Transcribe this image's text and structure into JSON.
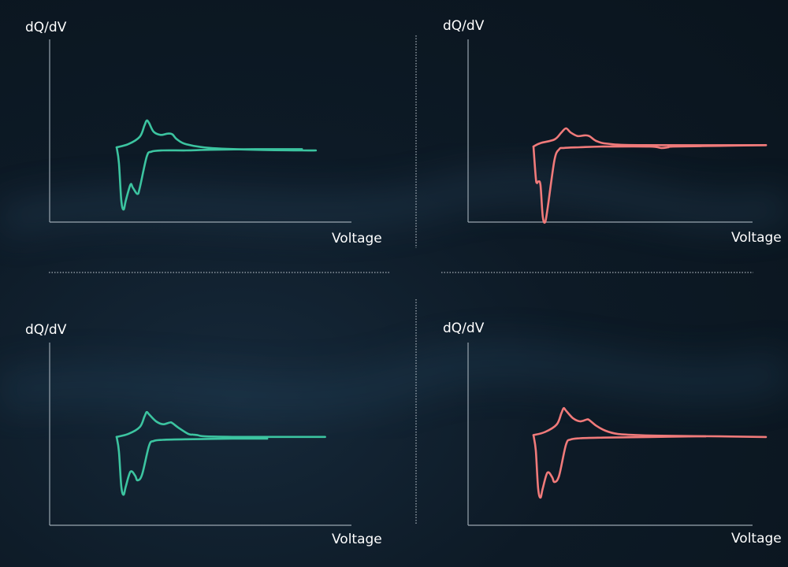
{
  "colors": {
    "background": "#0d1a26",
    "teal": "#3cc4a0",
    "coral": "#f07a7a",
    "axis": "#9aa6b0"
  },
  "chart_data": [
    {
      "type": "line",
      "ylabel": "dQ/dV",
      "xlabel": "Voltage",
      "color": "#3cc4a0",
      "xlim": [
        0,
        100
      ],
      "ylim": [
        -100,
        100
      ],
      "series": [
        {
          "values": [
            [
              0,
              5
            ],
            [
              1,
              -20
            ],
            [
              2,
              -80
            ],
            [
              3,
              -95
            ],
            [
              4,
              -80
            ],
            [
              6,
              -55
            ],
            [
              7,
              -60
            ],
            [
              9,
              -70
            ],
            [
              10,
              -60
            ],
            [
              13,
              -10
            ],
            [
              15,
              -2
            ],
            [
              20,
              0
            ],
            [
              30,
              0
            ],
            [
              40,
              1
            ],
            [
              60,
              2
            ],
            [
              75,
              2
            ],
            [
              80,
              2
            ]
          ]
        },
        {
          "values": [
            [
              0,
              5
            ],
            [
              5,
              10
            ],
            [
              10,
              22
            ],
            [
              12,
              40
            ],
            [
              13,
              48
            ],
            [
              14,
              44
            ],
            [
              16,
              30
            ],
            [
              19,
              25
            ],
            [
              22,
              27
            ],
            [
              24,
              26
            ],
            [
              26,
              18
            ],
            [
              30,
              10
            ],
            [
              40,
              4
            ],
            [
              60,
              1
            ],
            [
              80,
              0
            ],
            [
              86,
              0
            ]
          ]
        }
      ]
    },
    {
      "type": "line",
      "ylabel": "dQ/dV",
      "xlabel": "Voltage",
      "color": "#f07a7a",
      "xlim": [
        0,
        100
      ],
      "ylim": [
        -100,
        100
      ],
      "series": [
        {
          "values": [
            [
              0,
              10
            ],
            [
              1,
              -35
            ],
            [
              1.5,
              -42
            ],
            [
              2,
              -40
            ],
            [
              3,
              -45
            ],
            [
              4,
              -90
            ],
            [
              5,
              -98
            ],
            [
              6,
              -80
            ],
            [
              9,
              -10
            ],
            [
              11,
              6
            ],
            [
              13,
              8
            ],
            [
              20,
              9
            ],
            [
              30,
              10
            ],
            [
              50,
              10
            ],
            [
              55,
              8
            ],
            [
              58,
              9
            ],
            [
              60,
              10
            ],
            [
              80,
              11
            ],
            [
              100,
              12
            ]
          ]
        },
        {
          "values": [
            [
              0,
              10
            ],
            [
              3,
              15
            ],
            [
              9,
              20
            ],
            [
              12,
              30
            ],
            [
              14,
              36
            ],
            [
              16,
              30
            ],
            [
              19,
              25
            ],
            [
              22,
              26
            ],
            [
              24,
              25
            ],
            [
              27,
              18
            ],
            [
              32,
              14
            ],
            [
              45,
              12
            ],
            [
              100,
              12
            ]
          ]
        }
      ]
    },
    {
      "type": "line",
      "ylabel": "dQ/dV",
      "xlabel": "Voltage",
      "color": "#3cc4a0",
      "xlim": [
        0,
        100
      ],
      "ylim": [
        -100,
        100
      ],
      "series": [
        {
          "values": [
            [
              0,
              5
            ],
            [
              1,
              -20
            ],
            [
              2,
              -80
            ],
            [
              3,
              -95
            ],
            [
              4,
              -80
            ],
            [
              6,
              -55
            ],
            [
              8,
              -62
            ],
            [
              9,
              -70
            ],
            [
              11,
              -60
            ],
            [
              14,
              -10
            ],
            [
              16,
              -2
            ],
            [
              20,
              0
            ],
            [
              30,
              1
            ],
            [
              50,
              2
            ],
            [
              65,
              2
            ]
          ]
        },
        {
          "values": [
            [
              0,
              5
            ],
            [
              5,
              10
            ],
            [
              10,
              22
            ],
            [
              12,
              40
            ],
            [
              13,
              48
            ],
            [
              14,
              44
            ],
            [
              17,
              32
            ],
            [
              20,
              27
            ],
            [
              23,
              30
            ],
            [
              24,
              29
            ],
            [
              27,
              20
            ],
            [
              31,
              10
            ],
            [
              33,
              9
            ],
            [
              35,
              8
            ],
            [
              38,
              6
            ],
            [
              50,
              5
            ],
            [
              60,
              5
            ],
            [
              80,
              5
            ],
            [
              90,
              5
            ]
          ]
        }
      ]
    },
    {
      "type": "line",
      "ylabel": "dQ/dV",
      "xlabel": "Voltage",
      "color": "#f07a7a",
      "xlim": [
        0,
        100
      ],
      "ylim": [
        -100,
        100
      ],
      "series": [
        {
          "values": [
            [
              0,
              5
            ],
            [
              1,
              -20
            ],
            [
              2,
              -80
            ],
            [
              3,
              -95
            ],
            [
              4,
              -80
            ],
            [
              6,
              -55
            ],
            [
              8,
              -62
            ],
            [
              9,
              -70
            ],
            [
              11,
              -60
            ],
            [
              14,
              -10
            ],
            [
              16,
              -2
            ],
            [
              20,
              0
            ],
            [
              30,
              1
            ],
            [
              50,
              2
            ],
            [
              70,
              3
            ],
            [
              74,
              3
            ]
          ]
        },
        {
          "values": [
            [
              0,
              5
            ],
            [
              5,
              10
            ],
            [
              10,
              22
            ],
            [
              12,
              40
            ],
            [
              13,
              48
            ],
            [
              14,
              44
            ],
            [
              17,
              32
            ],
            [
              20,
              27
            ],
            [
              23,
              30
            ],
            [
              24,
              29
            ],
            [
              27,
              20
            ],
            [
              31,
              12
            ],
            [
              36,
              7
            ],
            [
              45,
              5
            ],
            [
              55,
              4
            ],
            [
              80,
              3
            ],
            [
              100,
              2
            ]
          ]
        }
      ]
    }
  ]
}
